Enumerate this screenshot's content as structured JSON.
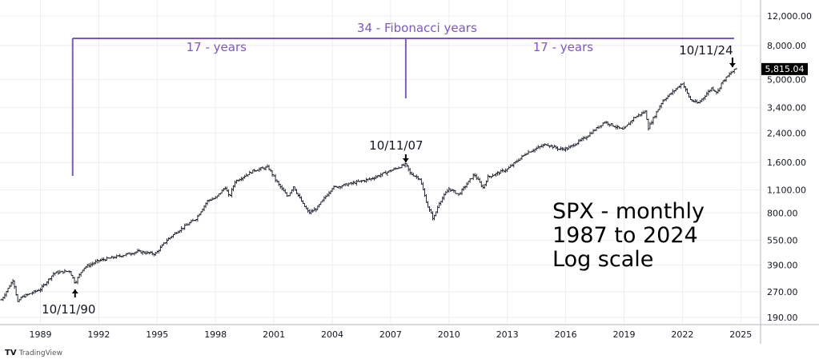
{
  "chart_data": {
    "type": "ohlc",
    "title": "SPX - monthly",
    "annotation_lines": [
      "SPX - monthly",
      "1987 to 2024",
      "Log scale"
    ],
    "yscale": "log",
    "ylim": [
      175,
      13500
    ],
    "xlim": [
      1987.0,
      2026.3
    ],
    "y_ticks": [
      12000,
      8000,
      5000,
      3400,
      2400,
      1600,
      1100,
      800,
      550,
      390,
      270,
      190
    ],
    "y_tick_labels": [
      "12,000.00",
      "8,000.00",
      "5,000.00",
      "3,400.00",
      "2,400.00",
      "1,600.00",
      "1,100.00",
      "800.00",
      "550.00",
      "390.00",
      "270.00",
      "190.00"
    ],
    "x_ticks": [
      1989,
      1992,
      1995,
      1998,
      2001,
      2004,
      2007,
      2010,
      2013,
      2016,
      2019,
      2022,
      2025
    ],
    "x_tick_labels": [
      "1989",
      "1992",
      "1995",
      "1998",
      "2001",
      "2004",
      "2007",
      "2010",
      "2013",
      "2016",
      "2019",
      "2022",
      "2025"
    ],
    "last_price": 5815.04,
    "last_price_label": "5,815.04",
    "series_anchor_points": [
      [
        1987.0,
        242
      ],
      [
        1987.6,
        320
      ],
      [
        1987.85,
        230
      ],
      [
        1988.0,
        250
      ],
      [
        1989.0,
        280
      ],
      [
        1989.7,
        350
      ],
      [
        1990.5,
        360
      ],
      [
        1990.78,
        305
      ],
      [
        1991.2,
        375
      ],
      [
        1992.0,
        415
      ],
      [
        1993.0,
        440
      ],
      [
        1994.0,
        470
      ],
      [
        1994.9,
        455
      ],
      [
        1995.5,
        550
      ],
      [
        1996.0,
        615
      ],
      [
        1997.0,
        740
      ],
      [
        1997.6,
        950
      ],
      [
        1998.0,
        980
      ],
      [
        1998.5,
        1140
      ],
      [
        1998.7,
        990
      ],
      [
        1999.0,
        1230
      ],
      [
        2000.0,
        1440
      ],
      [
        2000.7,
        1500
      ],
      [
        2001.2,
        1200
      ],
      [
        2001.7,
        1000
      ],
      [
        2002.0,
        1150
      ],
      [
        2002.5,
        900
      ],
      [
        2002.8,
        800
      ],
      [
        2003.2,
        850
      ],
      [
        2004.0,
        1130
      ],
      [
        2005.0,
        1200
      ],
      [
        2006.0,
        1280
      ],
      [
        2007.0,
        1430
      ],
      [
        2007.78,
        1560
      ],
      [
        2008.0,
        1380
      ],
      [
        2008.5,
        1280
      ],
      [
        2008.9,
        880
      ],
      [
        2009.2,
        735
      ],
      [
        2009.5,
        920
      ],
      [
        2010.0,
        1115
      ],
      [
        2010.5,
        1030
      ],
      [
        2011.3,
        1360
      ],
      [
        2011.75,
        1130
      ],
      [
        2012.0,
        1310
      ],
      [
        2013.0,
        1460
      ],
      [
        2014.0,
        1830
      ],
      [
        2015.0,
        2060
      ],
      [
        2015.7,
        1920
      ],
      [
        2016.1,
        1940
      ],
      [
        2017.0,
        2250
      ],
      [
        2018.0,
        2800
      ],
      [
        2018.95,
        2500
      ],
      [
        2019.5,
        2950
      ],
      [
        2020.1,
        3230
      ],
      [
        2020.25,
        2580
      ],
      [
        2020.9,
        3600
      ],
      [
        2021.0,
        3750
      ],
      [
        2022.0,
        4770
      ],
      [
        2022.4,
        3800
      ],
      [
        2022.8,
        3600
      ],
      [
        2023.5,
        4450
      ],
      [
        2023.8,
        4190
      ],
      [
        2024.0,
        4770
      ],
      [
        2024.5,
        5500
      ],
      [
        2024.78,
        5815
      ]
    ],
    "annotations": {
      "span_total": "34 - Fibonacci years",
      "span_left": "17 - years",
      "span_right": "17 - years",
      "span_start": 1990.78,
      "span_mid": 2007.78,
      "span_end": 2024.78,
      "low_1990_label": "10/11/90",
      "top_2007_label": "10/11/07",
      "top_2024_label": "10/11/24"
    },
    "colors": {
      "annotation": "#7e57c2",
      "bars": "#131722",
      "grid": "#eeeeee"
    }
  },
  "branding": {
    "logo_text": "TradingView"
  }
}
